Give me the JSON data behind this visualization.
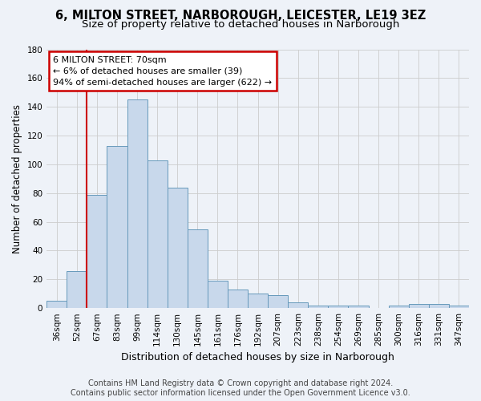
{
  "title1": "6, MILTON STREET, NARBOROUGH, LEICESTER, LE19 3EZ",
  "title2": "Size of property relative to detached houses in Narborough",
  "xlabel": "Distribution of detached houses by size in Narborough",
  "ylabel": "Number of detached properties",
  "bin_labels": [
    "36sqm",
    "52sqm",
    "67sqm",
    "83sqm",
    "99sqm",
    "114sqm",
    "130sqm",
    "145sqm",
    "161sqm",
    "176sqm",
    "192sqm",
    "207sqm",
    "223sqm",
    "238sqm",
    "254sqm",
    "269sqm",
    "285sqm",
    "300sqm",
    "316sqm",
    "331sqm",
    "347sqm"
  ],
  "bar_values": [
    5,
    26,
    79,
    113,
    145,
    103,
    84,
    55,
    19,
    13,
    10,
    9,
    4,
    2,
    2,
    2,
    0,
    2,
    3,
    3,
    2
  ],
  "bar_color": "#c8d8eb",
  "bar_edge_color": "#6699bb",
  "annotation_line1": "6 MILTON STREET: 70sqm",
  "annotation_line2": "← 6% of detached houses are smaller (39)",
  "annotation_line3": "94% of semi-detached houses are larger (622) →",
  "annotation_box_color": "#ffffff",
  "annotation_box_edge": "#cc0000",
  "vline_color": "#cc0000",
  "footer1": "Contains HM Land Registry data © Crown copyright and database right 2024.",
  "footer2": "Contains public sector information licensed under the Open Government Licence v3.0.",
  "ylim": [
    0,
    180
  ],
  "yticks": [
    0,
    20,
    40,
    60,
    80,
    100,
    120,
    140,
    160,
    180
  ],
  "grid_color": "#cccccc",
  "background_color": "#eef2f8",
  "title1_fontsize": 10.5,
  "title2_fontsize": 9.5,
  "xlabel_fontsize": 9,
  "ylabel_fontsize": 8.5,
  "tick_fontsize": 7.5,
  "footer_fontsize": 7,
  "subject_bar_index": 2
}
